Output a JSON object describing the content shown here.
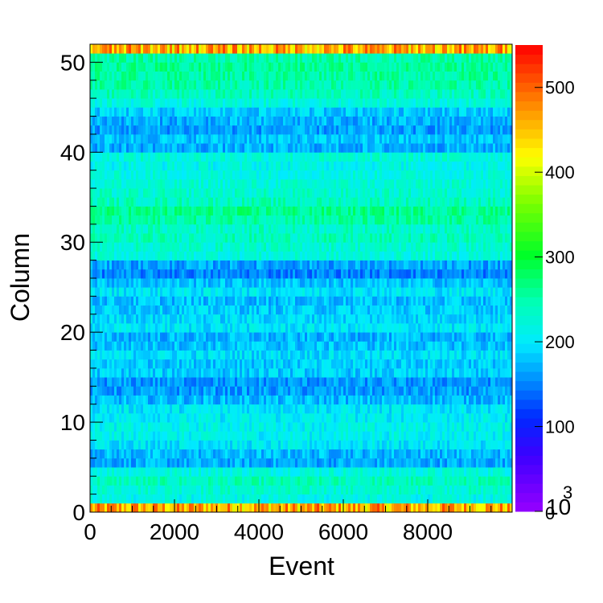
{
  "chart_data": {
    "type": "heatmap",
    "title": "",
    "xlabel": "Event",
    "ylabel": "Column",
    "xlim": [
      0,
      10000
    ],
    "ylim": [
      0,
      52
    ],
    "x_ticks": [
      "0",
      "2000",
      "4000",
      "6000",
      "8000"
    ],
    "x_tick_values": [
      0,
      2000,
      4000,
      6000,
      8000
    ],
    "y_ticks": [
      "0",
      "10",
      "20",
      "30",
      "40",
      "50"
    ],
    "y_tick_values": [
      0,
      10,
      20,
      30,
      40,
      50
    ],
    "colorbar": {
      "range": [
        0,
        550
      ],
      "ticks": [
        "0",
        "100",
        "200",
        "300",
        "400",
        "500"
      ],
      "tick_values": [
        0,
        100,
        200,
        300,
        400,
        500
      ],
      "exponent_label": "10",
      "exponent_power": "3"
    },
    "column_mean_values": [
      460,
      215,
      230,
      240,
      222,
      168,
      175,
      200,
      210,
      212,
      205,
      200,
      175,
      160,
      158,
      185,
      185,
      195,
      180,
      172,
      198,
      192,
      185,
      178,
      200,
      180,
      150,
      165,
      222,
      230,
      240,
      235,
      252,
      262,
      240,
      230,
      225,
      220,
      215,
      225,
      170,
      180,
      162,
      170,
      185,
      220,
      240,
      250,
      255,
      258,
      250,
      460
    ]
  }
}
